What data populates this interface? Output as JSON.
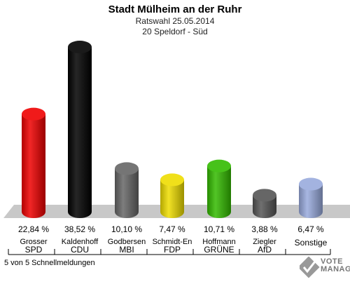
{
  "header": {
    "title": "Stadt Mülheim an der Ruhr",
    "subtitle1": "Ratswahl 25.05.2014",
    "subtitle2": "20 Speldorf - Süd"
  },
  "footer": {
    "status": "5 von 5 Schnellmeldungen"
  },
  "logo": {
    "line1": "VOTE",
    "line2": "MANAGER"
  },
  "chart_data": {
    "type": "bar",
    "title": "",
    "xlabel": "",
    "ylabel": "",
    "ylim": [
      0,
      40
    ],
    "grid": false,
    "categories": [
      "SPD",
      "CDU",
      "MBI",
      "FDP",
      "GRÜNE",
      "AfD",
      "Sonstige"
    ],
    "candidates": [
      "Grosser",
      "Kaldenhoff",
      "Godbersen",
      "Schmidt-En",
      "Hoffmann",
      "Ziegler",
      ""
    ],
    "values": [
      22.84,
      38.52,
      10.1,
      7.47,
      10.71,
      3.88,
      6.47
    ],
    "value_labels": [
      "22,84 %",
      "38,52 %",
      "10,10 %",
      "7,47 %",
      "10,71 %",
      "3,88 %",
      "6,47 %"
    ],
    "colors": [
      "#ee0000",
      "#000000",
      "#666666",
      "#eedd00",
      "#33bb00",
      "#555555",
      "#99aadd"
    ]
  }
}
